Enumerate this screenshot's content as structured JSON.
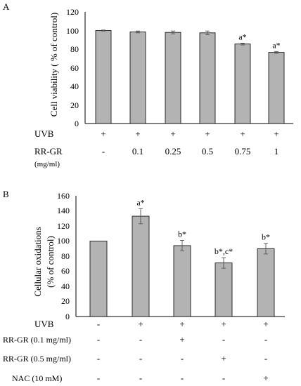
{
  "chart_data": [
    {
      "panel_label": "A",
      "type": "bar",
      "ylabel": "Cell viability ( % of control)",
      "ylim": [
        0,
        120
      ],
      "yticks": [
        "0",
        "20",
        "40",
        "60",
        "80",
        "100",
        "120"
      ],
      "grid": false,
      "values": [
        100,
        98.5,
        98,
        97.5,
        85.5,
        76.5
      ],
      "errors": [
        0.5,
        1,
        1.5,
        2,
        1,
        1
      ],
      "annotations": [
        "",
        "",
        "",
        "",
        "a*",
        "a*"
      ],
      "treatments": [
        {
          "label": "UVB",
          "values": [
            "+",
            "+",
            "+",
            "+",
            "+",
            "+"
          ]
        },
        {
          "label": "RR-GR",
          "values": [
            "-",
            "0.1",
            "0.25",
            "0.5",
            "0.75",
            "1"
          ]
        }
      ],
      "treatment_unit": "(mg/ml)"
    },
    {
      "panel_label": "B",
      "type": "bar",
      "ylabel_lines": [
        "Cellular oxidations",
        "(% of control)"
      ],
      "ylim": [
        0,
        160
      ],
      "yticks": [
        "0",
        "20",
        "40",
        "60",
        "80",
        "100",
        "120",
        "140",
        "160"
      ],
      "grid": false,
      "values": [
        100,
        133,
        94,
        71,
        90
      ],
      "errors": [
        0,
        10,
        7,
        7,
        7
      ],
      "annotations": [
        "",
        "a*",
        "b*",
        "b*,c*",
        "b*"
      ],
      "treatments": [
        {
          "label": "UVB",
          "values": [
            "-",
            "+",
            "+",
            "+",
            "+"
          ]
        },
        {
          "label": "RR-GR (0.1 mg/ml)",
          "values": [
            "-",
            "-",
            "+",
            "-",
            "-"
          ]
        },
        {
          "label": "RR-GR (0.5 mg/ml)",
          "values": [
            "-",
            "-",
            "-",
            "+",
            "-"
          ]
        },
        {
          "label": "NAC (10 mM)",
          "values": [
            "-",
            "-",
            "-",
            "-",
            "+"
          ]
        }
      ]
    }
  ]
}
